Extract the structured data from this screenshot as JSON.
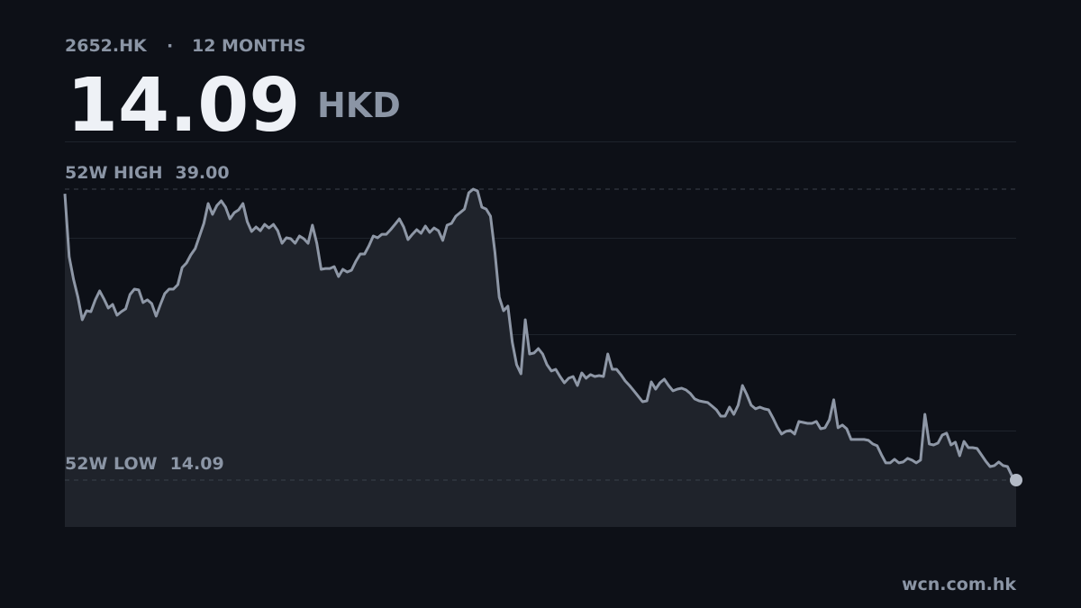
{
  "chart_data": {
    "type": "line",
    "ticker": "2652.HK",
    "separator": "·",
    "period": "12 MONTHS",
    "price": 14.09,
    "currency": "HKD",
    "high": {
      "text": "52W HIGH",
      "value": {
        "value": 39,
        "label": "39.00"
      }
    },
    "low": {
      "text": "52W LOW",
      "value": 14.09
    },
    "source": "wcn.com.hk",
    "color": "#8e97a6",
    "ylim": [
      10.08,
      43.09
    ],
    "values": [
      38.61,
      33.22,
      31.29,
      29.75,
      27.82,
      28.59,
      28.51,
      29.52,
      30.29,
      29.6,
      28.82,
      29.13,
      28.21,
      28.51,
      28.75,
      29.98,
      30.44,
      30.37,
      29.29,
      29.52,
      29.21,
      28.13,
      29.13,
      30.06,
      30.44,
      30.44,
      30.83,
      32.29,
      32.68,
      33.37,
      33.91,
      34.99,
      36.07,
      37.77,
      36.84,
      37.61,
      38.0,
      37.46,
      36.46,
      36.99,
      37.23,
      37.77,
      36.22,
      35.38,
      35.76,
      35.45,
      35.99,
      35.68,
      35.99,
      35.45,
      34.37,
      34.84,
      34.76,
      34.37,
      34.99,
      34.76,
      34.37,
      35.92,
      34.37,
      32.14,
      32.21,
      32.21,
      32.37,
      31.52,
      32.14,
      31.91,
      32.06,
      32.83,
      33.45,
      33.45,
      34.14,
      34.99,
      34.84,
      35.14,
      35.14,
      35.53,
      35.99,
      36.46,
      35.76,
      34.68,
      35.14,
      35.53,
      35.22,
      35.84,
      35.3,
      35.68,
      35.45,
      34.61,
      35.92,
      36.07,
      36.69,
      36.99,
      37.3,
      38.69,
      39.0,
      38.85,
      37.46,
      37.3,
      36.69,
      33.6,
      29.75,
      28.59,
      28.98,
      25.89,
      23.97,
      23.19,
      27.82,
      24.89,
      24.97,
      25.35,
      24.89,
      23.97,
      23.43,
      23.58,
      22.96,
      22.42,
      22.81,
      22.96,
      22.19,
      23.27,
      22.81,
      23.12,
      22.96,
      23.04,
      22.96,
      24.89,
      23.58,
      23.58,
      23.12,
      22.58,
      22.19,
      21.73,
      21.27,
      20.8,
      20.88,
      22.5,
      21.88,
      22.42,
      22.73,
      22.19,
      21.73,
      21.88,
      21.96,
      21.81,
      21.5,
      21.04,
      20.88,
      20.8,
      20.73,
      20.42,
      20.11,
      19.57,
      19.57,
      20.34,
      19.72,
      20.5,
      22.19,
      21.42,
      20.5,
      20.19,
      20.34,
      20.19,
      20.11,
      19.42,
      18.65,
      18.03,
      18.26,
      18.34,
      18.03,
      19.11,
      19.03,
      18.95,
      18.95,
      19.11,
      18.49,
      18.57,
      19.26,
      20.96,
      18.57,
      18.8,
      18.49,
      17.57,
      17.57,
      17.57,
      17.57,
      17.49,
      17.18,
      17.03,
      16.26,
      15.56,
      15.56,
      15.87,
      15.56,
      15.64,
      15.95,
      15.8,
      15.56,
      15.8,
      19.72,
      17.18,
      17.1,
      17.26,
      17.95,
      18.11,
      17.1,
      17.34,
      16.18,
      17.41,
      16.87,
      16.87,
      16.8,
      16.26,
      15.72,
      15.25,
      15.33,
      15.64,
      15.33,
      15.25,
      14.48,
      14.09
    ]
  }
}
